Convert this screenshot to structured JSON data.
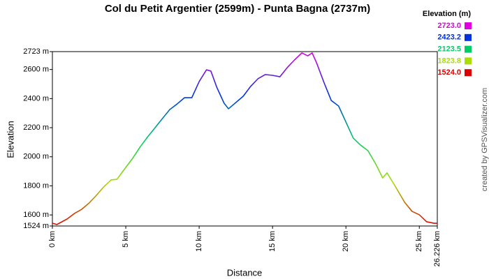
{
  "chart_data": {
    "type": "line",
    "title": "Col du Petit Argentier (2599m) - Punta Bagna (2737m)",
    "x_label": "Distance",
    "y_label": "Elevation",
    "credit": "created by GPSVisualizer.com",
    "x": [
      0,
      0.3,
      1,
      1.5,
      2,
      2.5,
      3,
      3.5,
      4,
      4.4,
      5,
      5.5,
      6,
      6.5,
      7,
      7.5,
      8,
      8.5,
      9,
      9.5,
      10,
      10.5,
      10.8,
      11.2,
      11.7,
      12,
      12.5,
      13,
      13.5,
      14,
      14.5,
      15,
      15.5,
      16,
      16.5,
      17,
      17.4,
      17.7,
      18,
      18.5,
      19,
      19.5,
      20,
      20.5,
      21,
      21.5,
      22,
      22.5,
      22.8,
      23.3,
      24,
      24.5,
      25,
      25.5,
      26,
      26.226
    ],
    "values": [
      1543,
      1534,
      1572,
      1610,
      1639,
      1682,
      1735,
      1793,
      1841,
      1845,
      1927,
      1994,
      2071,
      2138,
      2200,
      2263,
      2325,
      2363,
      2406,
      2406,
      2517,
      2598,
      2589,
      2478,
      2368,
      2330,
      2373,
      2416,
      2483,
      2536,
      2565,
      2560,
      2550,
      2613,
      2666,
      2714,
      2694,
      2714,
      2646,
      2512,
      2387,
      2349,
      2239,
      2128,
      2080,
      2042,
      1956,
      1855,
      1889,
      1807,
      1687,
      1625,
      1601,
      1553,
      1543,
      1543
    ],
    "xlim": [
      0,
      26.226
    ],
    "ylim": [
      1524,
      2723
    ],
    "xticks": [
      {
        "value": 0,
        "label": "0 km"
      },
      {
        "value": 5,
        "label": "5 km"
      },
      {
        "value": 10,
        "label": "10 km"
      },
      {
        "value": 15,
        "label": "15 km"
      },
      {
        "value": 20,
        "label": "20 km"
      },
      {
        "value": 25,
        "label": "25 km"
      },
      {
        "value": 26.226,
        "label": "26.226 km"
      }
    ],
    "yticks": [
      {
        "value": 1524,
        "label": "1524 m"
      },
      {
        "value": 1600,
        "label": "1600 m"
      },
      {
        "value": 1800,
        "label": "1800 m"
      },
      {
        "value": 2000,
        "label": "2000 m"
      },
      {
        "value": 2200,
        "label": "2200 m"
      },
      {
        "value": 2400,
        "label": "2400 m"
      },
      {
        "value": 2600,
        "label": "2600 m"
      },
      {
        "value": 2723,
        "label": "2723 m"
      }
    ],
    "grid": false,
    "color_scale_title": "Elevation (m)",
    "color_scale": [
      {
        "value": 2723.0,
        "label": "2723.0",
        "color": "#e000e0"
      },
      {
        "value": 2423.2,
        "label": "2423.2",
        "color": "#0033dd"
      },
      {
        "value": 2123.5,
        "label": "2123.5",
        "color": "#00cc66"
      },
      {
        "value": 1823.8,
        "label": "1823.8",
        "color": "#aadd00"
      },
      {
        "value": 1524.0,
        "label": "1524.0",
        "color": "#dd0000"
      }
    ]
  }
}
